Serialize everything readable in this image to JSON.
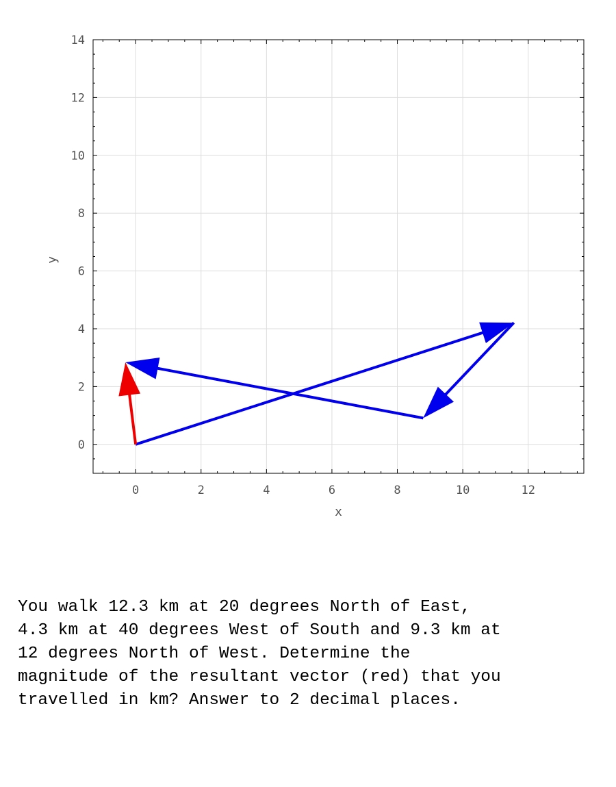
{
  "chart_data": {
    "type": "vector-plot",
    "xlabel": "x",
    "ylabel": "y",
    "xlim": [
      -1.3,
      13.7
    ],
    "ylim": [
      -1,
      14
    ],
    "x_ticks": [
      0,
      2,
      4,
      6,
      8,
      10,
      12
    ],
    "y_ticks": [
      0,
      2,
      4,
      6,
      8,
      10,
      12,
      14
    ],
    "grid": true,
    "vectors": [
      {
        "name": "leg-1",
        "from": [
          0,
          0
        ],
        "to": [
          11.56,
          4.21
        ],
        "color": "#0000ee"
      },
      {
        "name": "leg-2",
        "from": [
          11.56,
          4.21
        ],
        "to": [
          8.79,
          0.91
        ],
        "color": "#0000ee"
      },
      {
        "name": "leg-3",
        "from": [
          8.79,
          0.91
        ],
        "to": [
          -0.31,
          2.84
        ],
        "color": "#0000ee"
      },
      {
        "name": "resultant",
        "from": [
          0,
          0
        ],
        "to": [
          -0.31,
          2.84
        ],
        "color": "#ee0000"
      }
    ]
  },
  "question": {
    "text": "You walk 12.3 km at 20 degrees North of East,\n4.3 km at 40 degrees West of South and 9.3 km at\n12 degrees North of West.  Determine the\nmagnitude of the resultant vector (red) that you\ntravelled in km? Answer to 2 decimal places."
  }
}
